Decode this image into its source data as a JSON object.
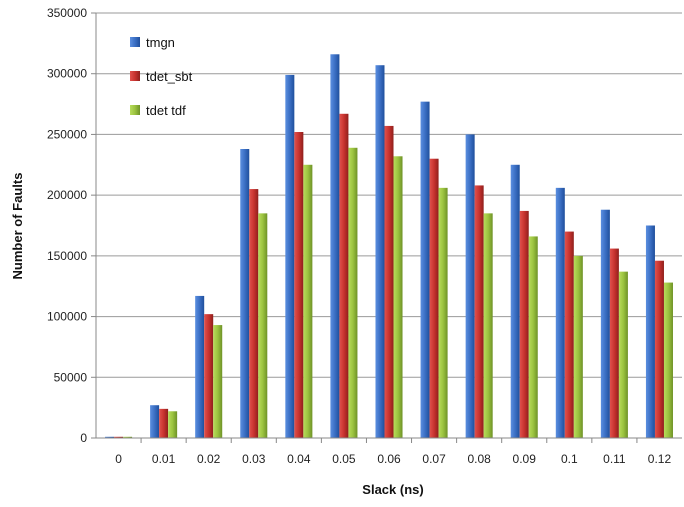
{
  "chart_data": {
    "type": "bar",
    "xlabel": "Slack (ns)",
    "ylabel": "Number of Faults",
    "ylim": [
      0,
      350000
    ],
    "yticks": [
      0,
      50000,
      100000,
      150000,
      200000,
      250000,
      300000,
      350000
    ],
    "categories": [
      "0",
      "0.01",
      "0.02",
      "0.03",
      "0.04",
      "0.05",
      "0.06",
      "0.07",
      "0.08",
      "0.09",
      "0.1",
      "0.11",
      "0.12"
    ],
    "series": [
      {
        "name": "tmgn",
        "color": "#3b6fc4",
        "values": [
          1000,
          27000,
          117000,
          238000,
          299000,
          316000,
          307000,
          277000,
          250000,
          225000,
          206000,
          188000,
          175000
        ]
      },
      {
        "name": "tdet_sbt",
        "color": "#c8332f",
        "values": [
          1000,
          24000,
          102000,
          205000,
          252000,
          267000,
          257000,
          230000,
          208000,
          187000,
          170000,
          156000,
          146000
        ]
      },
      {
        "name": "tdet tdf",
        "color": "#9bc33f",
        "values": [
          1000,
          22000,
          93000,
          185000,
          225000,
          239000,
          232000,
          206000,
          185000,
          166000,
          150000,
          137000,
          128000
        ]
      }
    ],
    "grid": true,
    "legend": "top-left"
  }
}
